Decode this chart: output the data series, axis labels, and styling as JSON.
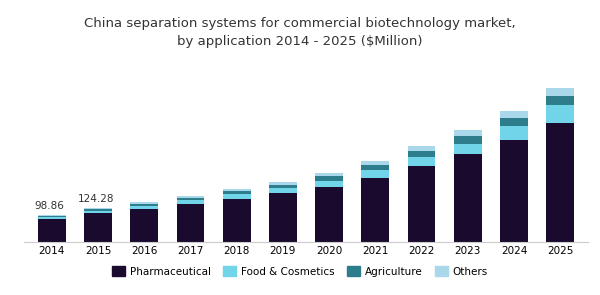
{
  "title": "China separation systems for commercial biotechnology market,\nby application 2014 - 2025 ($Million)",
  "years": [
    2014,
    2015,
    2016,
    2017,
    2018,
    2019,
    2020,
    2021,
    2022,
    2023,
    2024,
    2025
  ],
  "pharmaceutical": [
    82.0,
    103.0,
    118.0,
    137.0,
    157.0,
    176.0,
    200.0,
    232.0,
    275.0,
    318.0,
    368.0,
    430.0
  ],
  "food_cosmetics": [
    7.5,
    9.5,
    11.5,
    13.5,
    16.0,
    18.5,
    22.0,
    27.0,
    32.0,
    38.0,
    52.0,
    65.0
  ],
  "agriculture": [
    4.5,
    5.5,
    7.0,
    8.5,
    10.0,
    12.0,
    15.0,
    18.0,
    22.0,
    27.0,
    30.0,
    34.0
  ],
  "others": [
    4.86,
    6.28,
    7.5,
    8.5,
    10.0,
    11.5,
    13.5,
    16.0,
    19.0,
    22.0,
    25.0,
    28.0
  ],
  "annotations": {
    "idx_2014": 0,
    "idx_2015": 1,
    "val_2014": "98.86",
    "val_2015": "124.28"
  },
  "colors": {
    "pharmaceutical": "#1a0a2e",
    "food_cosmetics": "#72d4e8",
    "agriculture": "#2e7d8c",
    "others": "#a8d8ea"
  },
  "bar_width": 0.6,
  "background_color": "#ffffff",
  "title_color": "#333333",
  "title_fontsize": 9.5,
  "ylim": [
    0,
    620
  ],
  "header_bg_color": "#f0eaf8"
}
